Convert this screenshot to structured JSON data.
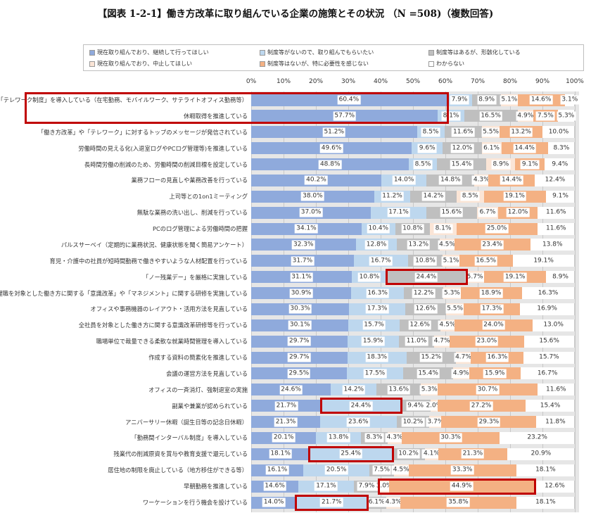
{
  "title": "【図表 1-2-1】働き方改革に取り組んでいる企業の施策とその状況 （N =508)（複数回答)",
  "chart_data": {
    "type": "bar",
    "orientation": "horizontal-stacked-100",
    "xlim": [
      0,
      100
    ],
    "x_ticks": [
      "0%",
      "10%",
      "20%",
      "30%",
      "40%",
      "50%",
      "60%",
      "70%",
      "80%",
      "90%",
      "100%"
    ],
    "legend_position": "top",
    "series": [
      {
        "name": "現在取り組んでおり、継続して行ってほしい",
        "color": "#8faadc"
      },
      {
        "name": "制度等がないので、取り組んでもらいたい",
        "color": "#bdd7ee"
      },
      {
        "name": "制度等はあるが、形骸化している",
        "color": "#bfbfbf"
      },
      {
        "name": "現在取り組んでおり、中止してほしい",
        "color": "#fbe5d6"
      },
      {
        "name": "制度等はないが、特に必要性を感じない",
        "color": "#f4b183"
      },
      {
        "name": "わからない",
        "color": "#ffffff"
      }
    ],
    "categories": [
      {
        "label": "「テレワーク制度」を導入している（在宅勤務、モバイルワーク、サテライトオフィス勤務等）",
        "values": [
          60.4,
          7.9,
          8.9,
          5.1,
          14.6,
          3.1
        ]
      },
      {
        "label": "休暇取得を推進している",
        "values": [
          57.7,
          8.1,
          16.5,
          4.9,
          7.5,
          5.3
        ]
      },
      {
        "label": "「働き方改革」や「テレワーク」に対するトップのメッセージが発信されている",
        "values": [
          51.2,
          8.5,
          11.6,
          5.5,
          13.2,
          10.0
        ]
      },
      {
        "label": "労働時間の見える化(入退室ログやPCログ管理等)を推進している",
        "values": [
          49.6,
          9.6,
          12.0,
          6.1,
          14.4,
          8.3
        ]
      },
      {
        "label": "長時間労働の削減のため、労働時間の削減目標を設定している",
        "values": [
          48.8,
          8.5,
          15.4,
          8.9,
          9.1,
          9.4
        ]
      },
      {
        "label": "業務フローの見直しや業務改善を行っている",
        "values": [
          40.2,
          14.0,
          14.8,
          4.3,
          14.4,
          12.4
        ]
      },
      {
        "label": "上司等との1on1ミーティング",
        "values": [
          38.0,
          11.2,
          14.2,
          8.5,
          19.1,
          9.1
        ]
      },
      {
        "label": "無駄な業務の洗い出し、削減を行っている",
        "values": [
          37.0,
          17.1,
          15.6,
          6.7,
          12.0,
          11.6
        ]
      },
      {
        "label": "PCのログ管理による労働時間の把握",
        "values": [
          34.1,
          10.4,
          10.8,
          8.1,
          25.0,
          11.6
        ]
      },
      {
        "label": "パルスサーベイ（定期的に業務状況、健康状態を聞く簡易アンケート）",
        "values": [
          32.3,
          12.8,
          13.2,
          4.5,
          23.4,
          13.8
        ]
      },
      {
        "label": "育児・介護中の社員が短時間勤務で働きやすいような人材配置を行っている",
        "values": [
          31.7,
          16.7,
          10.8,
          5.1,
          16.5,
          19.1
        ]
      },
      {
        "label": "「ノー残業デー」を厳格に実施している",
        "values": [
          31.1,
          10.8,
          24.4,
          5.7,
          19.1,
          8.9
        ]
      },
      {
        "label": "管理職を対象とした働き方に関する「意識改革」や「マネジメント」に関する研修を実施している",
        "values": [
          30.9,
          16.3,
          12.2,
          5.3,
          18.9,
          16.3
        ]
      },
      {
        "label": "オフィスや事務機器のレイアウト・活用方法を見直している",
        "values": [
          30.3,
          17.3,
          12.6,
          5.5,
          17.3,
          16.9
        ]
      },
      {
        "label": "全社員を対象とした働き方に関する意識改革研修等を行っている",
        "values": [
          30.1,
          15.7,
          12.6,
          4.5,
          24.0,
          13.0
        ]
      },
      {
        "label": "職場単位で裁量できる柔軟な就業時間管理を導入している",
        "values": [
          29.7,
          15.9,
          11.0,
          4.7,
          23.0,
          15.6
        ]
      },
      {
        "label": "作成する資料の簡素化を推進している",
        "values": [
          29.7,
          18.3,
          15.2,
          4.7,
          16.3,
          15.7
        ]
      },
      {
        "label": "会議の運営方法を見直している",
        "values": [
          29.5,
          17.5,
          15.4,
          4.9,
          15.9,
          16.7
        ]
      },
      {
        "label": "オフィスの一斉消灯、強制退室の実施",
        "values": [
          24.6,
          14.2,
          13.6,
          5.3,
          30.7,
          11.6
        ]
      },
      {
        "label": "副業や兼業が認められている",
        "values": [
          21.7,
          24.4,
          9.4,
          2.0,
          27.2,
          15.4
        ]
      },
      {
        "label": "アニバーサリー休暇（誕生日等の記念日休暇）",
        "values": [
          21.3,
          23.6,
          10.2,
          3.7,
          29.3,
          11.8
        ]
      },
      {
        "label": "「勤務間インターバル制度」を導入している",
        "values": [
          20.1,
          13.8,
          8.3,
          4.3,
          30.3,
          23.2
        ]
      },
      {
        "label": "残業代の削減原資を賞与や教育支援で還元している",
        "values": [
          18.1,
          25.4,
          10.2,
          4.1,
          21.3,
          20.9
        ]
      },
      {
        "label": "居住地の制限を廃止している（地方移住ができる等）",
        "values": [
          16.1,
          20.5,
          7.5,
          4.5,
          33.3,
          18.1
        ]
      },
      {
        "label": "早朝勤務を推進している",
        "values": [
          14.6,
          17.1,
          7.9,
          3.0,
          44.9,
          12.6
        ]
      },
      {
        "label": "ワーケーションを行う機会を設けている",
        "values": [
          14.0,
          21.7,
          6.1,
          4.3,
          35.8,
          18.1
        ]
      }
    ],
    "highlights": [
      {
        "rows": [
          0,
          1
        ],
        "series": [
          0,
          0
        ],
        "include_label": true
      },
      {
        "rows": [
          11,
          11
        ],
        "series": [
          2,
          2
        ]
      },
      {
        "rows": [
          19,
          19
        ],
        "series": [
          1,
          1
        ]
      },
      {
        "rows": [
          22,
          22
        ],
        "series": [
          1,
          1
        ]
      },
      {
        "rows": [
          24,
          24
        ],
        "series": [
          3,
          4
        ]
      },
      {
        "rows": [
          25,
          25
        ],
        "series": [
          1,
          1
        ]
      }
    ]
  }
}
